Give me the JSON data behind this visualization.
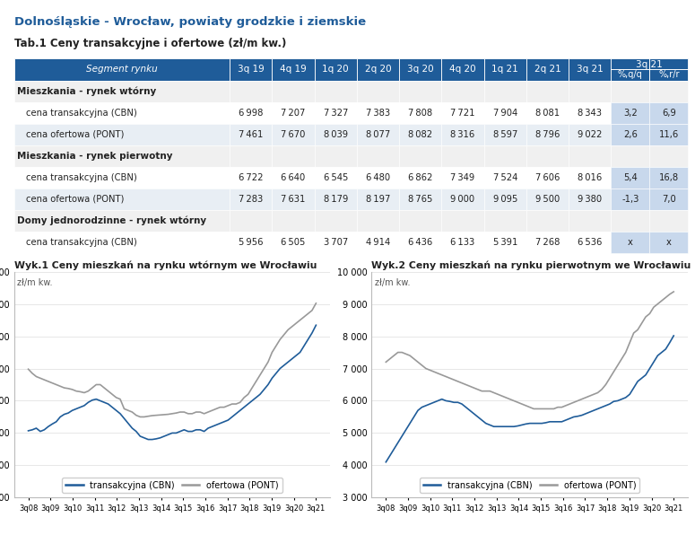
{
  "title": "Dolnośląskie - Wrocław, powiaty grodzkie i ziemskie",
  "table_title": "Tab.1 Ceny transakcyjne i ofertowe (zł/m kw.)",
  "title_color": "#1F5C99",
  "header_bg": "#1F5C99",
  "header_text_color": "#FFFFFF",
  "row_bg_alt": "#E8EEF4",
  "row_bg_white": "#FFFFFF",
  "row_bg_section": "#F0F0F0",
  "last_col_bg": "#C8D8EC",
  "col_headers_split": [
    "Segment rynku",
    "3q 19",
    "4q 19",
    "1q 20",
    "2q 20",
    "3q 20",
    "4q 20",
    "1q 21",
    "2q 21",
    "3q 21",
    "%,q/q",
    "%,r/r"
  ],
  "rows": [
    {
      "label": "Mieszkania - rynek wtórny",
      "header": true,
      "values": []
    },
    {
      "label": "cena transakcyjna (CBN)",
      "header": false,
      "values": [
        6998,
        7207,
        7327,
        7383,
        7808,
        7721,
        7904,
        8081,
        8343,
        "3,2",
        "6,9"
      ]
    },
    {
      "label": "cena ofertowa (PONT)",
      "header": false,
      "values": [
        7461,
        7670,
        8039,
        8077,
        8082,
        8316,
        8597,
        8796,
        9022,
        "2,6",
        "11,6"
      ]
    },
    {
      "label": "Mieszkania - rynek pierwotny",
      "header": true,
      "values": []
    },
    {
      "label": "cena transakcyjna (CBN)",
      "header": false,
      "values": [
        6722,
        6640,
        6545,
        6480,
        6862,
        7349,
        7524,
        7606,
        8016,
        "5,4",
        "16,8"
      ]
    },
    {
      "label": "cena ofertowa (PONT)",
      "header": false,
      "values": [
        7283,
        7631,
        8179,
        8197,
        8765,
        9000,
        9095,
        9500,
        9380,
        "-1,3",
        "7,0"
      ]
    },
    {
      "label": "Domy jednorodzinne - rynek wtórny",
      "header": true,
      "values": []
    },
    {
      "label": "cena transakcyjna (CBN)",
      "header": false,
      "values": [
        5956,
        6505,
        3707,
        4914,
        6436,
        6133,
        5391,
        7268,
        6536,
        "x",
        "x"
      ]
    }
  ],
  "wyk1_title": "Wyk.1 Ceny mieszkań na rynku wtórnym we Wrocławiu",
  "wyk2_title": "Wyk.2 Ceny mieszkań na rynku pierwotnym we Wrocławiu",
  "ylabel": "zł/m kw.",
  "ylim": [
    3000,
    10000
  ],
  "yticks": [
    3000,
    4000,
    5000,
    6000,
    7000,
    8000,
    9000,
    10000
  ],
  "xtick_labels": [
    "3q08",
    "3q09",
    "3q10",
    "3q11",
    "3q12",
    "3q13",
    "3q14",
    "3q15",
    "3q16",
    "3q17",
    "3q18",
    "3q19",
    "3q20",
    "3q21"
  ],
  "legend_cbn": "transakcyjna (CBN)",
  "legend_pont": "ofertowa (PONT)",
  "line_color_cbn": "#1F5C99",
  "line_color_pont": "#999999",
  "wyk1_cbn": [
    5070,
    5100,
    5150,
    5050,
    5100,
    5200,
    5280,
    5350,
    5500,
    5580,
    5620,
    5700,
    5750,
    5800,
    5850,
    5950,
    6020,
    6050,
    6000,
    5950,
    5900,
    5800,
    5700,
    5600,
    5450,
    5300,
    5150,
    5050,
    4900,
    4850,
    4800,
    4800,
    4820,
    4850,
    4900,
    4950,
    5000,
    5000,
    5050,
    5100,
    5050,
    5050,
    5100,
    5100,
    5050,
    5150,
    5200,
    5250,
    5300,
    5350,
    5400,
    5500,
    5600,
    5700,
    5800,
    5900,
    6000,
    6100,
    6200,
    6350,
    6500,
    6700,
    6850,
    7000,
    7100,
    7200,
    7300,
    7400,
    7500,
    7700,
    7900,
    8100,
    8343
  ],
  "wyk1_pont": [
    6980,
    6850,
    6750,
    6700,
    6650,
    6600,
    6550,
    6500,
    6450,
    6400,
    6380,
    6350,
    6300,
    6280,
    6250,
    6300,
    6400,
    6500,
    6500,
    6400,
    6300,
    6200,
    6100,
    6050,
    5750,
    5700,
    5650,
    5550,
    5500,
    5500,
    5520,
    5540,
    5550,
    5560,
    5570,
    5580,
    5600,
    5620,
    5650,
    5650,
    5600,
    5600,
    5650,
    5650,
    5600,
    5650,
    5700,
    5750,
    5800,
    5800,
    5850,
    5900,
    5900,
    5950,
    6100,
    6200,
    6400,
    6600,
    6800,
    7000,
    7200,
    7500,
    7700,
    7900,
    8050,
    8200,
    8300,
    8400,
    8500,
    8600,
    8700,
    8800,
    9022
  ],
  "wyk2_cbn": [
    4100,
    4300,
    4500,
    4700,
    4900,
    5100,
    5300,
    5500,
    5700,
    5800,
    5850,
    5900,
    5950,
    6000,
    6050,
    6000,
    5980,
    5950,
    5950,
    5900,
    5800,
    5700,
    5600,
    5500,
    5400,
    5300,
    5250,
    5200,
    5200,
    5200,
    5200,
    5200,
    5200,
    5220,
    5250,
    5280,
    5300,
    5300,
    5300,
    5300,
    5320,
    5350,
    5350,
    5350,
    5350,
    5400,
    5450,
    5500,
    5520,
    5550,
    5600,
    5650,
    5700,
    5750,
    5800,
    5850,
    5900,
    5980,
    6000,
    6050,
    6100,
    6200,
    6400,
    6600,
    6700,
    6800,
    7000,
    7200,
    7400,
    7500,
    7600,
    7800,
    8016
  ],
  "wyk2_pont": [
    7200,
    7300,
    7400,
    7500,
    7500,
    7450,
    7400,
    7300,
    7200,
    7100,
    7000,
    6950,
    6900,
    6850,
    6800,
    6750,
    6700,
    6650,
    6600,
    6550,
    6500,
    6450,
    6400,
    6350,
    6300,
    6300,
    6300,
    6250,
    6200,
    6150,
    6100,
    6050,
    6000,
    5950,
    5900,
    5850,
    5800,
    5750,
    5750,
    5750,
    5750,
    5750,
    5750,
    5800,
    5800,
    5850,
    5900,
    5950,
    6000,
    6050,
    6100,
    6150,
    6200,
    6250,
    6350,
    6500,
    6700,
    6900,
    7100,
    7300,
    7500,
    7800,
    8100,
    8200,
    8400,
    8600,
    8700,
    8900,
    9000,
    9100,
    9200,
    9300,
    9380
  ]
}
